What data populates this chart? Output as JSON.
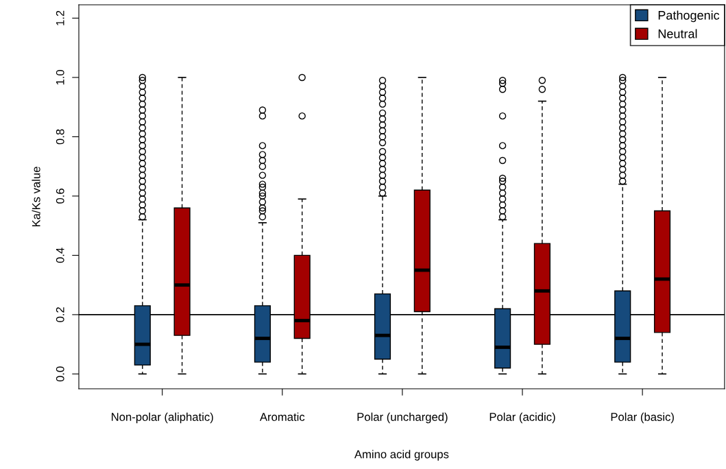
{
  "chart_data": {
    "type": "box",
    "xlabel": "Amino acid groups",
    "ylabel": "Ka/Ks value",
    "categories": [
      "Non-polar (aliphatic)",
      "Aromatic",
      "Polar (uncharged)",
      "Polar (acidic)",
      "Polar (basic)"
    ],
    "ylim": [
      -0.05,
      1.245
    ],
    "yticks": [
      {
        "value": 0,
        "label": "0.0"
      },
      0.2,
      0.4,
      0.6,
      0.8,
      {
        "value": 1,
        "label": "1.0"
      },
      1.2
    ],
    "series": [
      {
        "name": "Pathogenic",
        "color": "#164a7c",
        "boxes": [
          {
            "low": 0.0,
            "q1": 0.03,
            "median": 0.1,
            "q3": 0.23,
            "high": 0.52,
            "outliers": [
              0.53,
              0.55,
              0.57,
              0.59,
              0.61,
              0.63,
              0.65,
              0.67,
              0.69,
              0.71,
              0.73,
              0.75,
              0.77,
              0.79,
              0.81,
              0.83,
              0.85,
              0.87,
              0.89,
              0.91,
              0.93,
              0.95,
              0.97,
              0.99,
              1.0
            ]
          },
          {
            "low": 0.0,
            "q1": 0.04,
            "median": 0.12,
            "q3": 0.23,
            "high": 0.51,
            "outliers": [
              0.53,
              0.55,
              0.56,
              0.58,
              0.6,
              0.61,
              0.63,
              0.64,
              0.67,
              0.7,
              0.72,
              0.74,
              0.77,
              0.87,
              0.89
            ]
          },
          {
            "low": 0.0,
            "q1": 0.05,
            "median": 0.13,
            "q3": 0.27,
            "high": 0.6,
            "outliers": [
              0.61,
              0.63,
              0.65,
              0.67,
              0.69,
              0.71,
              0.73,
              0.75,
              0.78,
              0.8,
              0.82,
              0.84,
              0.86,
              0.88,
              0.91,
              0.93,
              0.95,
              0.97,
              0.99
            ]
          },
          {
            "low": 0.0,
            "q1": 0.02,
            "median": 0.09,
            "q3": 0.22,
            "high": 0.52,
            "outliers": [
              0.53,
              0.55,
              0.57,
              0.59,
              0.61,
              0.63,
              0.65,
              0.66,
              0.72,
              0.77,
              0.87,
              0.96,
              0.98,
              0.99
            ]
          },
          {
            "low": 0.0,
            "q1": 0.04,
            "median": 0.12,
            "q3": 0.28,
            "high": 0.64,
            "outliers": [
              0.65,
              0.67,
              0.69,
              0.71,
              0.73,
              0.75,
              0.77,
              0.79,
              0.81,
              0.83,
              0.85,
              0.87,
              0.89,
              0.91,
              0.93,
              0.95,
              0.97,
              0.99,
              1.0
            ]
          }
        ]
      },
      {
        "name": "Neutral",
        "color": "#a30000",
        "boxes": [
          {
            "low": 0.0,
            "q1": 0.13,
            "median": 0.3,
            "q3": 0.56,
            "high": 1.0
          },
          {
            "low": 0.0,
            "q1": 0.12,
            "median": 0.18,
            "q3": 0.4,
            "high": 0.59,
            "outliers": [
              0.87,
              1.0
            ]
          },
          {
            "low": 0.0,
            "q1": 0.21,
            "median": 0.35,
            "q3": 0.62,
            "high": 1.0
          },
          {
            "low": 0.0,
            "q1": 0.1,
            "median": 0.28,
            "q3": 0.44,
            "high": 0.92,
            "outliers": [
              0.96,
              0.99
            ]
          },
          {
            "low": 0.0,
            "q1": 0.14,
            "median": 0.32,
            "q3": 0.55,
            "high": 1.0
          }
        ]
      }
    ],
    "ref_lines": [
      {
        "axis": "y",
        "value": 0.2,
        "color": "#000000"
      }
    ],
    "legend": "top right",
    "grid": false
  }
}
